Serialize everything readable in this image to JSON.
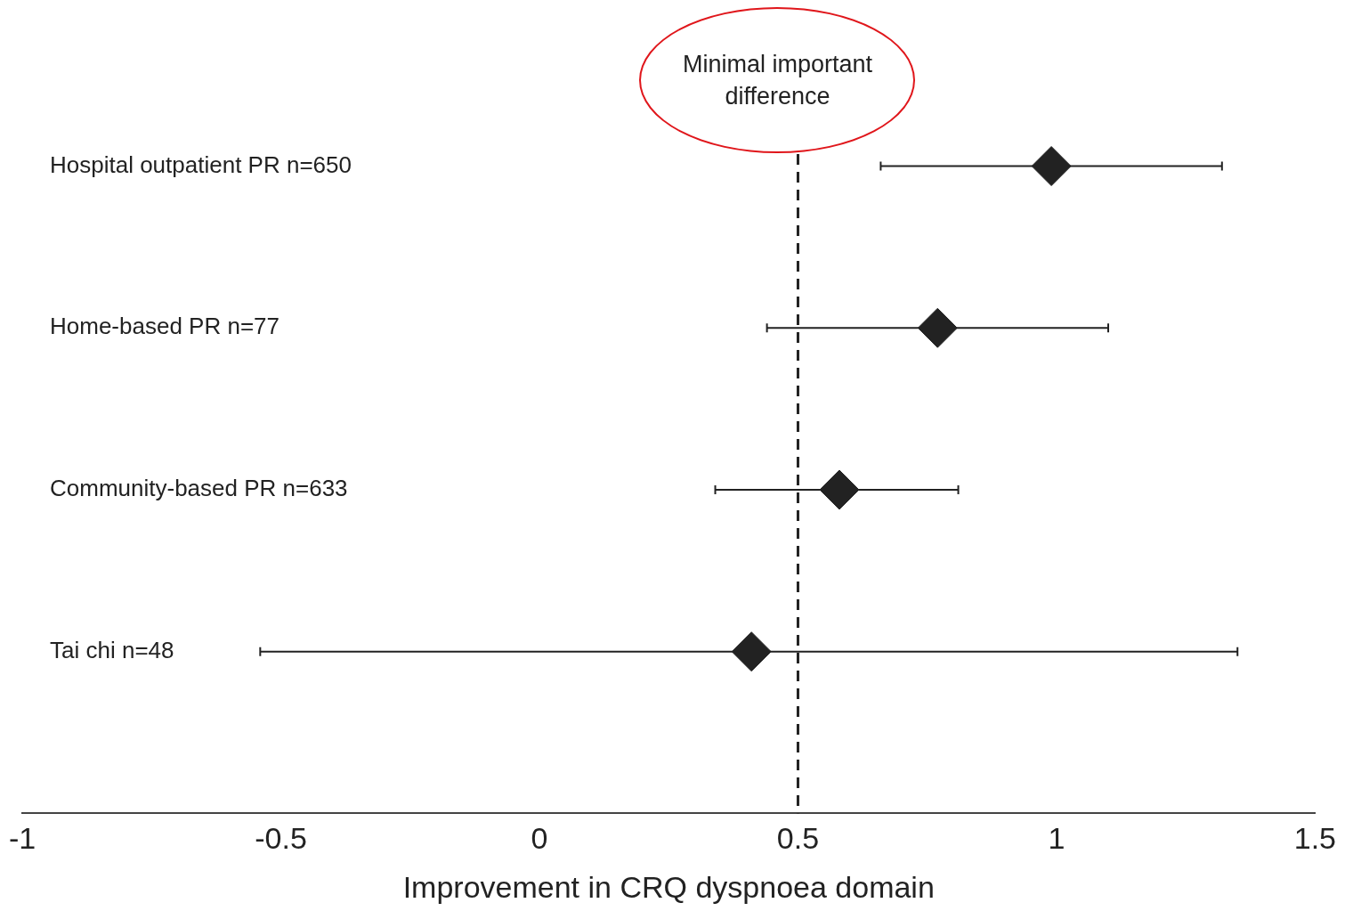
{
  "chart_data": {
    "type": "scatter",
    "orientation": "horizontal",
    "xlabel": "Improvement in CRQ dyspnoea domain",
    "categories": [
      "Hospital outpatient PR n=650",
      "Home-based PR n=77",
      "Community-based PR n=633",
      "Tai chi n=48"
    ],
    "values": [
      0.99,
      0.77,
      0.58,
      0.41
    ],
    "errors": [
      [
        0.66,
        1.32
      ],
      [
        0.44,
        1.1
      ],
      [
        0.34,
        0.81
      ],
      [
        -0.54,
        1.35
      ]
    ],
    "color": "#222222",
    "marker": "diamond",
    "xlim": [
      -1,
      1.5
    ],
    "xticks": [
      -1,
      -0.5,
      0,
      0.5,
      1,
      1.5
    ],
    "ref_lines": [
      {
        "axis": "x",
        "value": 0.5,
        "label": "Minimal important difference",
        "line_style": "dashed",
        "color": "#222222"
      }
    ],
    "grid": false,
    "legend": false
  }
}
